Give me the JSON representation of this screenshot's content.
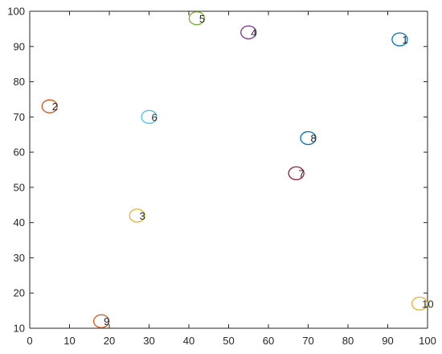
{
  "chart_data": {
    "type": "scatter",
    "title": "",
    "xlabel": "",
    "ylabel": "",
    "xlim": [
      0,
      100
    ],
    "ylim": [
      10,
      100
    ],
    "x_ticks": [
      0,
      10,
      20,
      30,
      40,
      50,
      60,
      70,
      80,
      90,
      100
    ],
    "y_ticks": [
      10,
      20,
      30,
      40,
      50,
      60,
      70,
      80,
      90,
      100
    ],
    "grid": false,
    "legend": "none",
    "marker": "circle-open",
    "points": [
      {
        "label": "1",
        "x": 93,
        "y": 92,
        "color": "#0072BD"
      },
      {
        "label": "2",
        "x": 5,
        "y": 73,
        "color": "#D95319"
      },
      {
        "label": "3",
        "x": 27,
        "y": 42,
        "color": "#EDB120"
      },
      {
        "label": "4",
        "x": 55,
        "y": 94,
        "color": "#7E2F8E"
      },
      {
        "label": "5",
        "x": 42,
        "y": 98,
        "color": "#77AC30"
      },
      {
        "label": "6",
        "x": 30,
        "y": 70,
        "color": "#4DBEEE"
      },
      {
        "label": "7",
        "x": 67,
        "y": 54,
        "color": "#A2142F"
      },
      {
        "label": "8",
        "x": 70,
        "y": 64,
        "color": "#0072BD"
      },
      {
        "label": "9",
        "x": 18,
        "y": 12,
        "color": "#D95319"
      },
      {
        "label": "10",
        "x": 98,
        "y": 17,
        "color": "#EDB120"
      }
    ]
  }
}
